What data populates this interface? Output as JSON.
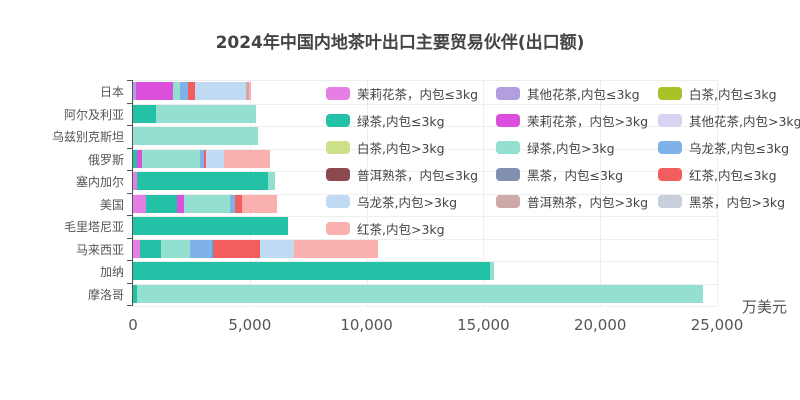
{
  "title": "2024年中国内地茶叶出口主要贸易伙伴(出口额)",
  "chart_data": {
    "type": "bar",
    "orientation": "horizontal",
    "stacked": true,
    "title": "2024年中国内地茶叶出口主要贸易伙伴(出口额)",
    "xlabel": "万美元",
    "ylabel": "",
    "xlim": [
      0,
      25000
    ],
    "x_ticks": [
      "0",
      "5,000",
      "10,000",
      "15,000",
      "20,000",
      "25,000"
    ],
    "grid": true,
    "legend_position": "inside-right",
    "categories": [
      "日本",
      "阿尔及利亚",
      "乌兹别克斯坦",
      "俄罗斯",
      "塞内加尔",
      "美国",
      "毛里塔尼亚",
      "马来西亚",
      "加纳",
      "摩洛哥"
    ],
    "series": [
      {
        "name": "茉莉花茶，内包≤3kg",
        "color": "#e57ee5",
        "values": [
          0,
          0,
          0,
          0,
          170,
          560,
          0,
          300,
          0,
          0
        ]
      },
      {
        "name": "其他花茶,内包≤3kg",
        "color": "#b19fdf",
        "values": [
          130,
          0,
          0,
          0,
          0,
          0,
          0,
          0,
          0,
          0
        ]
      },
      {
        "name": "白茶,内包≤3kg",
        "color": "#a8c22a",
        "values": [
          0,
          0,
          0,
          0,
          0,
          0,
          0,
          0,
          0,
          0
        ]
      },
      {
        "name": "绿茶,内包≤3kg",
        "color": "#23c2a7",
        "values": [
          0,
          980,
          0,
          170,
          5620,
          1330,
          6640,
          900,
          15280,
          170
        ]
      },
      {
        "name": "茉莉花茶，内包>3kg",
        "color": "#dc4fdc",
        "values": [
          1580,
          0,
          0,
          210,
          0,
          300,
          0,
          0,
          0,
          0
        ]
      },
      {
        "name": "其他花茶,内包>3kg",
        "color": "#d9d2f0",
        "values": [
          0,
          0,
          0,
          0,
          0,
          0,
          0,
          0,
          0,
          0
        ]
      },
      {
        "name": "白茶,内包>3kg",
        "color": "#cde08a",
        "values": [
          0,
          0,
          0,
          0,
          0,
          0,
          0,
          0,
          0,
          0
        ]
      },
      {
        "name": "绿茶,内包>3kg",
        "color": "#93e0d1",
        "values": [
          300,
          4290,
          5350,
          2480,
          300,
          1970,
          0,
          1240,
          170,
          24230
        ]
      },
      {
        "name": "乌龙茶,内包≤3kg",
        "color": "#7fb2e8",
        "values": [
          340,
          0,
          0,
          170,
          0,
          210,
          0,
          940,
          0,
          0
        ]
      },
      {
        "name": "普洱熟茶，内包≤3kg",
        "color": "#8c4a4f",
        "values": [
          0,
          0,
          0,
          0,
          0,
          0,
          0,
          0,
          0,
          0
        ]
      },
      {
        "name": "黑茶，内包≤3kg",
        "color": "#8190b0",
        "values": [
          0,
          0,
          0,
          0,
          0,
          0,
          0,
          90,
          0,
          0
        ]
      },
      {
        "name": "红茶,内包≤3kg",
        "color": "#f25e5e",
        "values": [
          300,
          0,
          0,
          90,
          0,
          300,
          0,
          1970,
          0,
          0
        ]
      },
      {
        "name": "乌龙茶,内包>3kg",
        "color": "#bfdaf2",
        "values": [
          2180,
          0,
          0,
          770,
          0,
          0,
          0,
          1460,
          0,
          0
        ]
      },
      {
        "name": "普洱熟茶，内包>3kg",
        "color": "#cfa9a9",
        "values": [
          130,
          0,
          0,
          0,
          0,
          0,
          0,
          0,
          0,
          0
        ]
      },
      {
        "name": "黑茶，内包>3kg",
        "color": "#c8cfdb",
        "values": [
          0,
          0,
          0,
          0,
          0,
          0,
          0,
          0,
          0,
          0
        ]
      },
      {
        "name": "红茶,内包>3kg",
        "color": "#f9b0ae",
        "values": [
          90,
          0,
          0,
          1970,
          0,
          1500,
          0,
          3600,
          0,
          0
        ]
      }
    ]
  }
}
